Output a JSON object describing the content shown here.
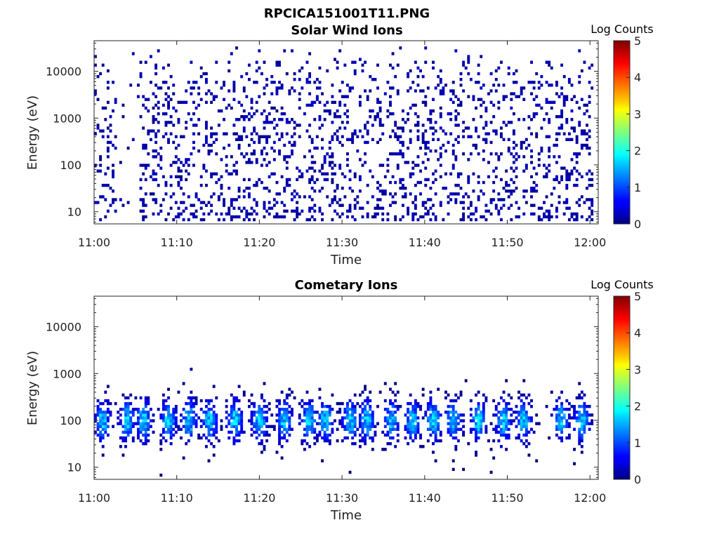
{
  "figure_title": "RPCICA151001T11.PNG",
  "chart_data": [
    {
      "type": "heatmap",
      "title": "Solar Wind Ions",
      "xlabel": "Time",
      "ylabel": "Energy (eV)",
      "xticks": [
        "11:00",
        "11:10",
        "11:20",
        "11:30",
        "11:40",
        "11:50",
        "12:00"
      ],
      "xlim_minutes": [
        0,
        61
      ],
      "ylim": [
        5.5,
        45000
      ],
      "yscale": "log",
      "yticks": [
        10,
        100,
        1000,
        10000
      ],
      "ytick_labels": [
        "10",
        "100",
        "1000",
        "10000"
      ],
      "colorbar": {
        "label": "Log Counts",
        "range": [
          0,
          5
        ],
        "ticks": [
          "0",
          "1",
          "2",
          "3",
          "4",
          "5"
        ],
        "colormap": "jet"
      },
      "distribution": "sparse scattered low counts (log counts ~0-0.4) over 6-30000 eV across 11:00-12:00, gap near 11:03-11:05",
      "grid": false
    },
    {
      "type": "heatmap",
      "title": "Cometary Ions",
      "xlabel": "Time",
      "ylabel": "Energy (eV)",
      "xticks": [
        "11:00",
        "11:10",
        "11:20",
        "11:30",
        "11:40",
        "11:50",
        "12:00"
      ],
      "xlim_minutes": [
        0,
        61
      ],
      "ylim": [
        5.5,
        45000
      ],
      "yscale": "log",
      "yticks": [
        10,
        100,
        1000,
        10000
      ],
      "ytick_labels": [
        "10",
        "100",
        "1000",
        "10000"
      ],
      "colorbar": {
        "label": "Log Counts",
        "range": [
          0,
          5
        ],
        "ticks": [
          "0",
          "1",
          "2",
          "3",
          "4",
          "5"
        ],
        "colormap": "jet"
      },
      "distribution": "periodic bursts every ~3 minutes centred near 100 eV (range ~20-800 eV), peak log counts ~1.5",
      "burst_centers_minutes": [
        1,
        4,
        6,
        9,
        11.5,
        14,
        17,
        20,
        23,
        26,
        28,
        31,
        33,
        36,
        38.5,
        41,
        43.5,
        46.5,
        49.5,
        52,
        56.5,
        59
      ],
      "grid": false
    }
  ]
}
